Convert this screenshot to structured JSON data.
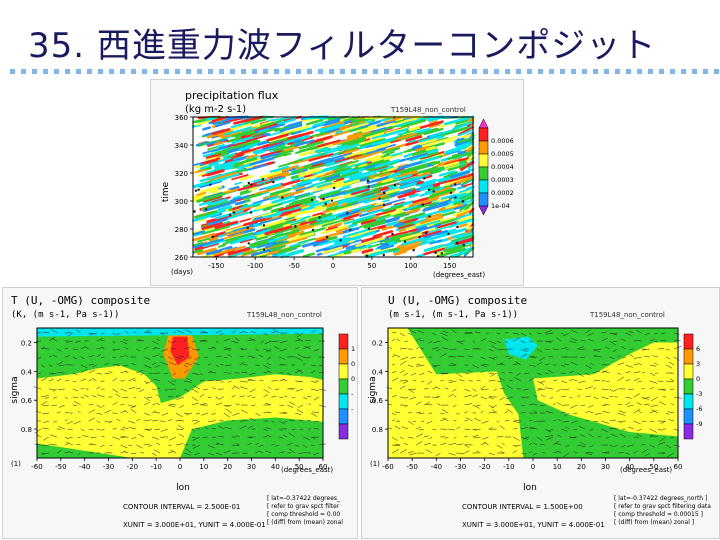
{
  "slide": {
    "title": "35. 西進重力波フィルターコンポジット"
  },
  "colors": {
    "title_text": "#1a1a5e",
    "dot_row": "#7fb8e6",
    "level_purple": "#8a2be2",
    "level_blue": "#1e90ff",
    "level_cyan": "#00e5ee",
    "level_green": "#33cc33",
    "level_yellow": "#ffff33",
    "level_orange": "#ff9900",
    "level_red": "#ff2020",
    "level_magenta": "#ff33cc",
    "level_white": "#ffffff"
  },
  "chart_data": [
    {
      "type": "heatmap",
      "title": "precipitation flux",
      "subtitle": "(kg m-2 s-1)",
      "tag": "T159L48_non_control",
      "xlabel": "(degrees_east)",
      "xlabel_left": "(days)",
      "ylabel": "time",
      "xlim": [
        -180,
        180
      ],
      "ylim": [
        260,
        360
      ],
      "xticks": [
        -150,
        -100,
        -50,
        0,
        50,
        100,
        150
      ],
      "yticks": [
        260,
        280,
        300,
        320,
        340,
        360
      ],
      "colorbar": {
        "labels": [
          "0.0006",
          "0.0005",
          "0.0004",
          "0.0003",
          "0.0002",
          "1e-04"
        ],
        "colors": [
          "#ff2020",
          "#ff9900",
          "#ffff33",
          "#33cc33",
          "#00e5ee",
          "#1e90ff"
        ]
      }
    },
    {
      "type": "heatmap",
      "title": "T (U, -OMG) composite",
      "subtitle": "(K, (m s-1, Pa s-1))",
      "tag": "T159L48_non_control",
      "xlabel": "lon",
      "xunit": "(degrees_east)",
      "ylabel": "sigma",
      "y_corner": "(1)",
      "xlim": [
        -60,
        60
      ],
      "ylim": [
        1.0,
        0.1
      ],
      "xticks": [
        -60,
        -50,
        -40,
        -30,
        -20,
        -10,
        0,
        10,
        20,
        30,
        40,
        50,
        60
      ],
      "yticks": [
        0.2,
        0.4,
        0.6,
        0.8
      ],
      "colorbar": {
        "labels": [
          "1",
          "0",
          "0",
          "-",
          "-"
        ],
        "colors": [
          "#ff2020",
          "#ff9900",
          "#ffff33",
          "#33cc33",
          "#00e5ee",
          "#1e90ff",
          "#8a2be2"
        ]
      },
      "contour_interval": "CONTOUR INTERVAL = 2.500E-01",
      "units_line": "XUNIT = 3.000E+01, YUNIT = 4.000E-01",
      "notes": [
        "[ lat=-0.37422 degrees_",
        "[ refer to grav spct filter",
        "[ comp threshold = 0.00",
        "[ (diff) from (mean) zonal"
      ]
    },
    {
      "type": "heatmap",
      "title": "U (U, -OMG) composite",
      "subtitle": "(m s-1, (m s-1, Pa s-1))",
      "tag": "T159L48_non_control",
      "xlabel": "lon",
      "xunit": "(degrees_east)",
      "ylabel": "sigma",
      "y_corner": "(1)",
      "xlim": [
        -60,
        60
      ],
      "ylim": [
        1.0,
        0.1
      ],
      "xticks": [
        -60,
        -50,
        -40,
        -30,
        -20,
        -10,
        0,
        10,
        20,
        30,
        40,
        50,
        60
      ],
      "yticks": [
        0.2,
        0.4,
        0.6,
        0.8
      ],
      "colorbar": {
        "labels": [
          "6",
          "3",
          "0",
          "-3",
          "-6",
          "-9"
        ],
        "colors": [
          "#ff2020",
          "#ff9900",
          "#ffff33",
          "#33cc33",
          "#00e5ee",
          "#1e90ff",
          "#8a2be2"
        ]
      },
      "contour_interval": "CONTOUR INTERVAL = 1.500E+00",
      "units_line": "XUNIT = 3.000E+01, YUNIT = 4.000E-01",
      "notes": [
        "[ lat=-0.37422 degrees_north ]",
        "[ refer to grav spct filtering data",
        "[ comp threshold = 0.00015 ]",
        "[ (diff) from (mean) zonal ]"
      ]
    }
  ]
}
